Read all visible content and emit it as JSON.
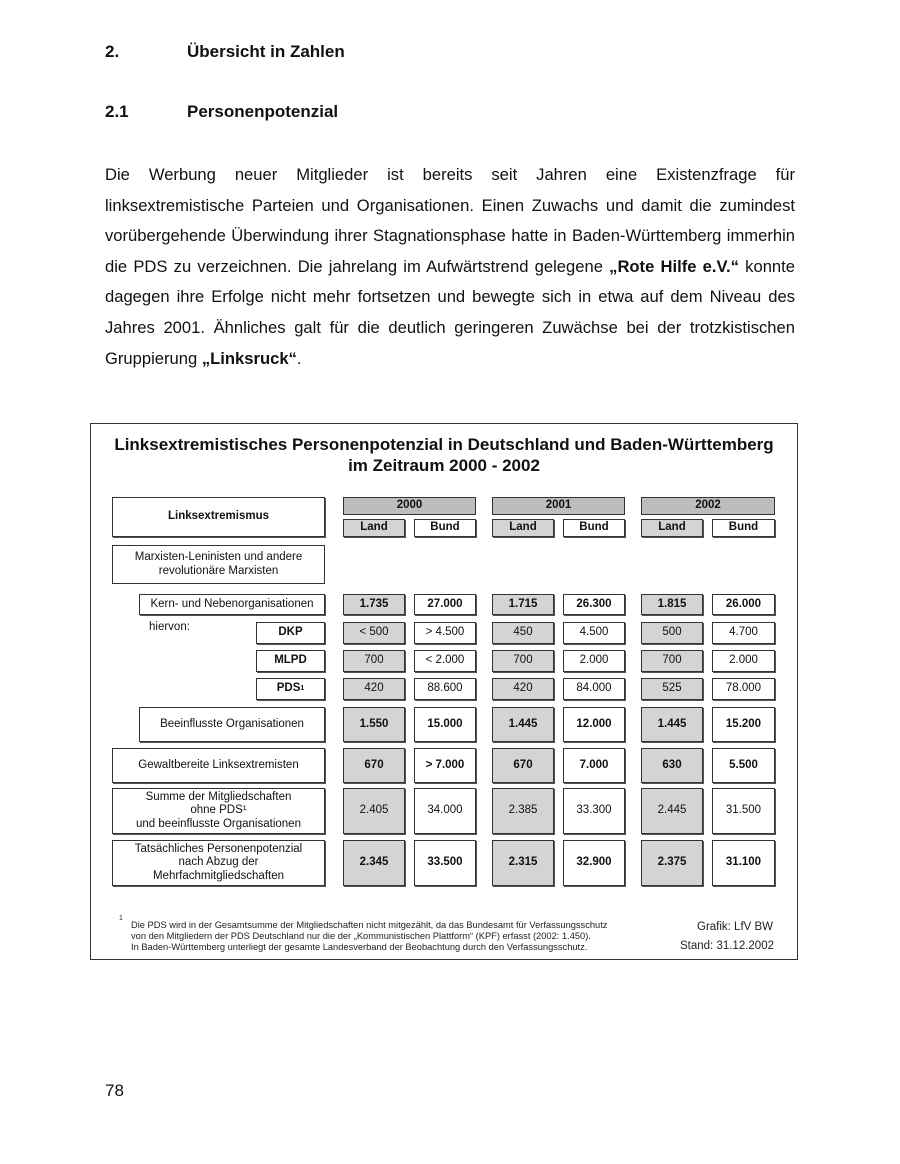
{
  "headings": [
    {
      "num": "2.",
      "text": "Übersicht in Zahlen"
    },
    {
      "num": "2.1",
      "text": "Personenpotenzial"
    }
  ],
  "paragraph": {
    "part1": "Die Werbung neuer Mitglieder ist bereits seit Jahren eine Existenzfrage für linksextremistische Parteien und Organisationen. Einen Zuwachs und damit die zumindest vorübergehende Überwindung ihrer Stagnationsphase hatte in Baden-Württemberg immerhin die PDS zu verzeichnen. Die jahrelang im Aufwärtstrend gelegene ",
    "bold1": "„Rote Hilfe e.V.“",
    "part2": " konnte dagegen ihre Erfolge nicht mehr fortsetzen und bewegte sich in etwa auf dem Niveau des Jahres 2001. Ähnliches galt für die deutlich geringeren Zuwächse bei der trotzkistischen Gruppierung ",
    "bold2": "„Linksruck“",
    "part3": "."
  },
  "figure": {
    "title_line1": "Linksextremistisches Personenpotenzial in Deutschland und Baden-Württemberg",
    "title_line2": "im Zeitraum 2000 - 2002",
    "corner_label": "Linksextremismus",
    "years": [
      "2000",
      "2001",
      "2002"
    ],
    "subcols": [
      "Land",
      "Bund"
    ],
    "group_label": "Marxisten-Leninisten und andere revolutionäre Marxisten",
    "hiervon": "hiervon:",
    "rows": [
      {
        "label": "Kern- und Nebenorganisationen",
        "values": [
          "1.735",
          "27.000",
          "1.715",
          "26.300",
          "1.815",
          "26.000"
        ],
        "bold": true
      },
      {
        "label": "DKP",
        "values": [
          "< 500",
          "> 4.500",
          "450",
          "4.500",
          "500",
          "4.700"
        ],
        "bold": false
      },
      {
        "label": "MLPD",
        "values": [
          "700",
          "< 2.000",
          "700",
          "2.000",
          "700",
          "2.000"
        ],
        "bold": false
      },
      {
        "label": "PDS",
        "sup": "1",
        "values": [
          "420",
          "88.600",
          "420",
          "84.000",
          "525",
          "78.000"
        ],
        "bold": false
      },
      {
        "label": "Beeinflusste Organisationen",
        "values": [
          "1.550",
          "15.000",
          "1.445",
          "12.000",
          "1.445",
          "15.200"
        ],
        "bold": true
      },
      {
        "label": "Gewaltbereite Linksextremisten",
        "values": [
          "670",
          "> 7.000",
          "670",
          "7.000",
          "630",
          "5.500"
        ],
        "bold": true
      },
      {
        "label": "Summe der Mitgliedschaften\nohne PDS¹\nund beeinflusste Organisationen",
        "values": [
          "2.405",
          "34.000",
          "2.385",
          "33.300",
          "2.445",
          "31.500"
        ],
        "bold": false
      },
      {
        "label": "Tatsächliches Personenpotenzial\nnach Abzug der\nMehrfachmitgliedschaften",
        "values": [
          "2.345",
          "33.500",
          "2.315",
          "32.900",
          "2.375",
          "31.100"
        ],
        "bold": true
      }
    ],
    "footnote_mark": "1",
    "footnote_lines": [
      "Die PDS wird in der Gesamtsumme der Mitgliedschaften nicht mitgezählt, da das Bundesamt für Verfassungsschutz",
      "von den Mitgliedern der PDS Deutschland nur die der „Kommunistischen Plattform“ (KPF) erfasst (2002: 1.450).",
      "In Baden-Württemberg unterliegt der gesamte Landesverband der Beobachtung durch den Verfassungsschutz."
    ],
    "source": "Grafik: LfV BW",
    "date": "Stand: 31.12.2002"
  },
  "page_number": "78"
}
